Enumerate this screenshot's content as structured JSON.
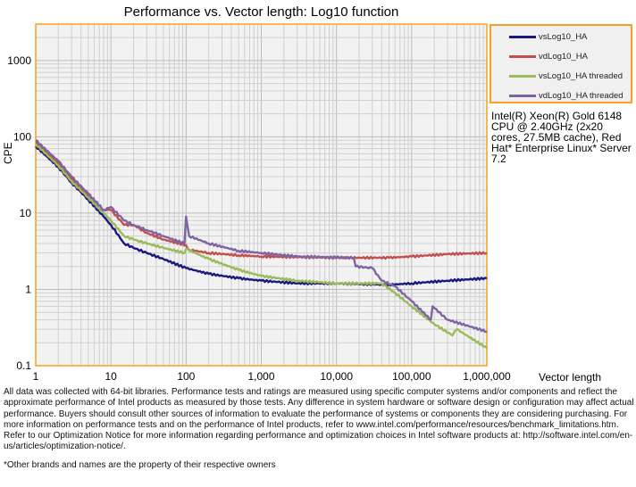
{
  "chart_data": {
    "type": "line",
    "title": "Performance vs. Vector length: Log10 function",
    "xlabel": "Vector length",
    "ylabel": "CPE",
    "xscale": "log",
    "yscale": "log",
    "xlim": [
      1,
      1000000
    ],
    "ylim": [
      0.1,
      3000
    ],
    "xticks": [
      {
        "v": 1,
        "l": "1"
      },
      {
        "v": 10,
        "l": "10"
      },
      {
        "v": 100,
        "l": "100"
      },
      {
        "v": 1000,
        "l": "1,000"
      },
      {
        "v": 10000,
        "l": "10,000"
      },
      {
        "v": 100000,
        "l": "100,000"
      },
      {
        "v": 1000000,
        "l": "1,000,000"
      }
    ],
    "yticks": [
      {
        "v": 0.1,
        "l": "0.1"
      },
      {
        "v": 1,
        "l": "1"
      },
      {
        "v": 10,
        "l": "10"
      },
      {
        "v": 100,
        "l": "100"
      },
      {
        "v": 1000,
        "l": "1000"
      }
    ],
    "grid": true,
    "legend_position": "right",
    "series": [
      {
        "name": "vsLog10_HA",
        "color": "#1a1a7e",
        "points": [
          [
            1,
            75
          ],
          [
            2,
            40
          ],
          [
            3,
            25
          ],
          [
            5,
            15
          ],
          [
            8,
            9
          ],
          [
            10,
            7
          ],
          [
            15,
            4
          ],
          [
            20,
            3.5
          ],
          [
            30,
            3
          ],
          [
            50,
            2.5
          ],
          [
            100,
            1.9
          ],
          [
            200,
            1.6
          ],
          [
            500,
            1.4
          ],
          [
            1000,
            1.3
          ],
          [
            3000,
            1.2
          ],
          [
            10000,
            1.2
          ],
          [
            50000,
            1.15
          ],
          [
            100000,
            1.2
          ],
          [
            300000,
            1.3
          ],
          [
            1000000,
            1.4
          ]
        ]
      },
      {
        "name": "vdLog10_HA",
        "color": "#c0504d",
        "points": [
          [
            1,
            85
          ],
          [
            2,
            45
          ],
          [
            3,
            28
          ],
          [
            5,
            17
          ],
          [
            8,
            11
          ],
          [
            10,
            11
          ],
          [
            15,
            7
          ],
          [
            20,
            7
          ],
          [
            30,
            5.5
          ],
          [
            50,
            4.5
          ],
          [
            100,
            3.8
          ],
          [
            110,
            3.3
          ],
          [
            200,
            3.0
          ],
          [
            500,
            2.8
          ],
          [
            1000,
            2.7
          ],
          [
            10000,
            2.6
          ],
          [
            50000,
            2.6
          ],
          [
            100000,
            2.7
          ],
          [
            300000,
            2.9
          ],
          [
            1000000,
            3.0
          ]
        ]
      },
      {
        "name": "vsLog10_HA threaded",
        "color": "#9bbb59",
        "points": [
          [
            1,
            80
          ],
          [
            2,
            42
          ],
          [
            3,
            26
          ],
          [
            5,
            16
          ],
          [
            8,
            10
          ],
          [
            10,
            8
          ],
          [
            15,
            5
          ],
          [
            20,
            4.5
          ],
          [
            30,
            4
          ],
          [
            50,
            3.5
          ],
          [
            95,
            3
          ],
          [
            100,
            3.4
          ],
          [
            200,
            2.5
          ],
          [
            500,
            1.8
          ],
          [
            1000,
            1.5
          ],
          [
            3000,
            1.3
          ],
          [
            10000,
            1.2
          ],
          [
            40000,
            1.2
          ],
          [
            60000,
            0.9
          ],
          [
            100000,
            0.6
          ],
          [
            200000,
            0.35
          ],
          [
            350000,
            0.25
          ],
          [
            400000,
            0.3
          ],
          [
            1000000,
            0.17
          ]
        ]
      },
      {
        "name": "vdLog10_HA threaded",
        "color": "#8064a2",
        "points": [
          [
            1,
            90
          ],
          [
            2,
            48
          ],
          [
            3,
            30
          ],
          [
            5,
            18
          ],
          [
            8,
            11
          ],
          [
            10,
            12
          ],
          [
            15,
            8
          ],
          [
            20,
            7
          ],
          [
            30,
            6
          ],
          [
            50,
            5
          ],
          [
            95,
            4
          ],
          [
            100,
            9
          ],
          [
            110,
            5
          ],
          [
            200,
            4
          ],
          [
            500,
            3.2
          ],
          [
            1000,
            3.0
          ],
          [
            3000,
            2.7
          ],
          [
            17000,
            2.6
          ],
          [
            18000,
            2.0
          ],
          [
            30000,
            1.9
          ],
          [
            40000,
            1.3
          ],
          [
            60000,
            1.1
          ],
          [
            100000,
            0.7
          ],
          [
            180000,
            0.4
          ],
          [
            190000,
            0.6
          ],
          [
            300000,
            0.4
          ],
          [
            1000000,
            0.28
          ]
        ]
      }
    ]
  },
  "cpu_note": "Intel(R) Xeon(R) Gold 6148 CPU @ 2.40GHz (2x20 cores, 27.5MB cache), Red Hat* Enterprise Linux* Server 7.2",
  "footnote": "All data was collected with 64-bit libraries. Performance tests and ratings are measured using specific computer systems and/or components and reflect the approximate performance of Intel products as measured by those tests. Any difference in system hardware or software design or configuration may affect actual performance. Buyers should consult other sources of information to evaluate the performance of systems or components they are considering purchasing. For more information on performance tests and on the performance of Intel products, refer to www.intel.com/performance/resources/benchmark_limitations.htm. Refer to our Optimization Notice for more information regarding performance and optimization choices in Intel software products at: http://software.intel.com/en-us/articles/optimization-notice/.",
  "footnote2": "*Other brands and names are the property of their respective owners"
}
